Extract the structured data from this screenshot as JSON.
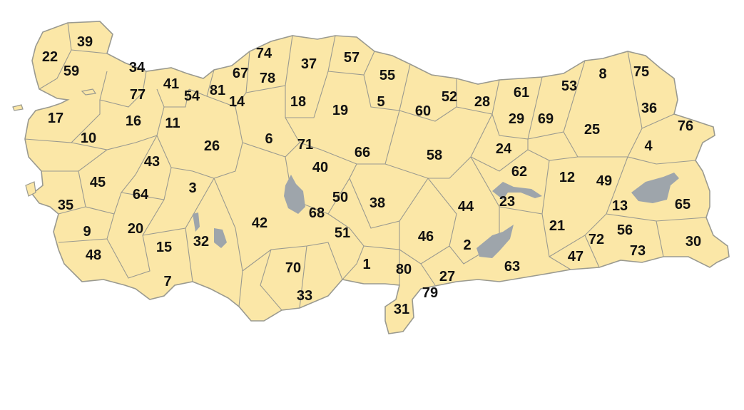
{
  "map": {
    "land_color": "#fbe7a7",
    "border_color": "#9a9a90",
    "water_color": "#9ea5ab",
    "label_color": "#111111",
    "plates": [
      "39",
      "22",
      "59",
      "34",
      "77",
      "41",
      "54",
      "81",
      "67",
      "74",
      "78",
      "14",
      "37",
      "57",
      "55",
      "18",
      "19",
      "5",
      "52",
      "60",
      "28",
      "61",
      "53",
      "8",
      "75",
      "36",
      "29",
      "69",
      "25",
      "76",
      "4",
      "17",
      "16",
      "11",
      "10",
      "26",
      "6",
      "71",
      "66",
      "58",
      "24",
      "62",
      "12",
      "49",
      "40",
      "43",
      "45",
      "3",
      "64",
      "50",
      "68",
      "38",
      "44",
      "23",
      "13",
      "65",
      "35",
      "9",
      "20",
      "42",
      "51",
      "21",
      "56",
      "72",
      "46",
      "2",
      "30",
      "48",
      "15",
      "32",
      "73",
      "47",
      "70",
      "1",
      "80",
      "63",
      "27",
      "7",
      "33",
      "79",
      "31"
    ]
  }
}
